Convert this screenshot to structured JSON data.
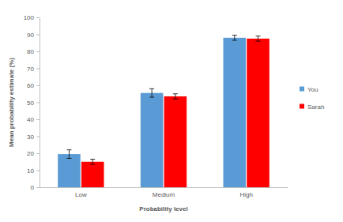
{
  "chart_data": {
    "type": "bar",
    "x_label": "Probability level",
    "y_label": "Mean probability estimate (%)",
    "categories": [
      "Low",
      "Medium",
      "High"
    ],
    "series": [
      {
        "name": "You",
        "color": "#5b9bd5",
        "values": [
          19.5,
          55.5,
          88
        ],
        "errors": [
          2.5,
          2.5,
          1.5
        ]
      },
      {
        "name": "Sarah",
        "color": "#ff0000",
        "values": [
          15,
          53.5,
          87.5
        ],
        "errors": [
          1.5,
          1.5,
          1.5
        ]
      }
    ],
    "ylim": [
      0,
      100
    ],
    "yticks": [
      0,
      10,
      20,
      30,
      40,
      50,
      60,
      70,
      80,
      90,
      100
    ],
    "grid": false,
    "legend": "right"
  }
}
